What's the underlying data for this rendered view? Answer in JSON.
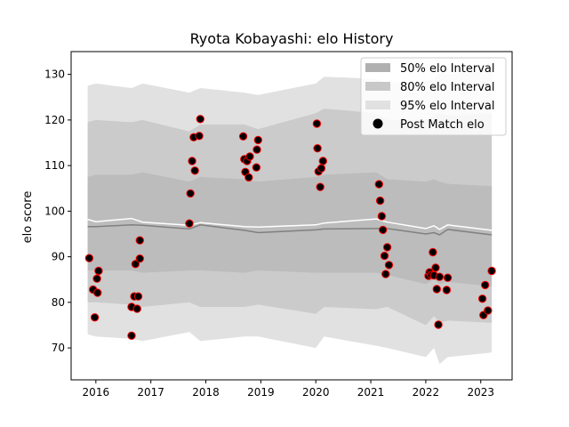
{
  "chart_data": {
    "type": "scatter",
    "title": "Ryota Kobayashi: elo History",
    "xlabel": "",
    "ylabel": "elo score",
    "xlim": [
      2015.55,
      2023.57
    ],
    "ylim": [
      63,
      135
    ],
    "x_ticks": [
      2016,
      2017,
      2018,
      2019,
      2020,
      2021,
      2022,
      2023
    ],
    "y_ticks": [
      70,
      80,
      90,
      100,
      110,
      120,
      130
    ],
    "grid": false,
    "legend_position": "top-right",
    "legend": [
      {
        "label": "50% elo Interval",
        "kind": "band",
        "color": "#b0b0b0"
      },
      {
        "label": "80% elo Interval",
        "kind": "band",
        "color": "#c8c8c8"
      },
      {
        "label": "95% elo Interval",
        "kind": "band",
        "color": "#e1e1e1"
      },
      {
        "label": "Post Match elo",
        "kind": "marker",
        "color": "#000000"
      }
    ],
    "colors": {
      "band_95": "#e1e1e1",
      "band_80": "#cbcbcb",
      "band_50": "#bcbcbc",
      "mean_line": "#808080",
      "median_line": "#ffffff",
      "marker_fill": "#000000",
      "marker_edge": "#ff0000"
    },
    "bands": {
      "x": [
        2015.85,
        2016.0,
        2016.65,
        2016.85,
        2017.7,
        2017.9,
        2018.7,
        2018.95,
        2020.0,
        2020.15,
        2021.1,
        2021.3,
        2022.0,
        2022.15,
        2022.25,
        2022.4,
        2023.2
      ],
      "band_95_upper": [
        127.5,
        128.0,
        127.0,
        128.0,
        126.0,
        127.0,
        126.0,
        125.5,
        128.0,
        129.5,
        129.0,
        128.0,
        128.5,
        129.0,
        130.5,
        130.0,
        131.0
      ],
      "band_95_lower": [
        73.0,
        72.5,
        72.0,
        71.5,
        73.5,
        71.5,
        72.5,
        72.5,
        70.0,
        72.5,
        70.5,
        70.0,
        68.0,
        70.0,
        66.5,
        68.0,
        69.0
      ],
      "band_80_upper": [
        119.5,
        120.0,
        119.5,
        120.0,
        117.5,
        119.0,
        119.0,
        118.0,
        121.5,
        122.5,
        121.5,
        120.0,
        120.0,
        121.0,
        121.5,
        121.0,
        121.5
      ],
      "band_80_lower": [
        80.0,
        80.0,
        79.5,
        79.0,
        80.0,
        79.0,
        79.0,
        79.5,
        77.5,
        79.0,
        78.5,
        79.0,
        75.0,
        77.0,
        75.5,
        76.0,
        75.5
      ],
      "band_50_upper": [
        107.5,
        108.0,
        108.0,
        108.5,
        106.5,
        107.5,
        107.0,
        106.5,
        107.5,
        108.0,
        108.5,
        107.0,
        106.5,
        107.0,
        106.5,
        106.0,
        105.5
      ],
      "band_50_lower": [
        87.0,
        87.0,
        87.0,
        86.5,
        87.0,
        87.0,
        86.5,
        87.0,
        86.5,
        86.5,
        86.5,
        86.0,
        84.0,
        85.0,
        84.0,
        84.5,
        83.5
      ],
      "mean_line": [
        96.6,
        96.6,
        97.0,
        96.9,
        96.1,
        97.0,
        95.8,
        95.3,
        95.9,
        96.1,
        96.2,
        96.2,
        95.0,
        95.3,
        94.8,
        96.0,
        94.8
      ],
      "median_line": [
        98.2,
        97.7,
        98.4,
        97.6,
        96.9,
        97.5,
        96.6,
        96.5,
        97.0,
        97.4,
        98.3,
        97.6,
        96.2,
        96.8,
        96.0,
        97.0,
        95.8
      ]
    },
    "series": [
      {
        "name": "Post Match elo",
        "points": [
          [
            2015.88,
            89.7
          ],
          [
            2015.95,
            82.8
          ],
          [
            2015.98,
            76.7
          ],
          [
            2016.02,
            85.2
          ],
          [
            2016.03,
            82.1
          ],
          [
            2016.05,
            86.9
          ],
          [
            2016.65,
            72.7
          ],
          [
            2016.65,
            79.0
          ],
          [
            2016.7,
            81.3
          ],
          [
            2016.72,
            88.4
          ],
          [
            2016.75,
            78.6
          ],
          [
            2016.77,
            81.3
          ],
          [
            2016.8,
            93.6
          ],
          [
            2016.8,
            89.6
          ],
          [
            2017.7,
            97.3
          ],
          [
            2017.72,
            103.9
          ],
          [
            2017.75,
            111.0
          ],
          [
            2017.78,
            116.2
          ],
          [
            2017.8,
            108.9
          ],
          [
            2017.88,
            116.5
          ],
          [
            2017.9,
            120.2
          ],
          [
            2018.68,
            116.4
          ],
          [
            2018.7,
            111.4
          ],
          [
            2018.72,
            108.6
          ],
          [
            2018.75,
            111.0
          ],
          [
            2018.78,
            107.4
          ],
          [
            2018.8,
            112.0
          ],
          [
            2018.92,
            109.6
          ],
          [
            2018.93,
            113.5
          ],
          [
            2018.95,
            115.6
          ],
          [
            2020.02,
            119.2
          ],
          [
            2020.03,
            113.8
          ],
          [
            2020.05,
            108.7
          ],
          [
            2020.08,
            105.3
          ],
          [
            2020.1,
            109.4
          ],
          [
            2020.13,
            111.0
          ],
          [
            2021.15,
            105.9
          ],
          [
            2021.17,
            102.3
          ],
          [
            2021.2,
            98.9
          ],
          [
            2021.22,
            95.9
          ],
          [
            2021.25,
            90.2
          ],
          [
            2021.27,
            86.2
          ],
          [
            2021.3,
            92.1
          ],
          [
            2021.33,
            88.2
          ],
          [
            2022.05,
            85.8
          ],
          [
            2022.07,
            86.6
          ],
          [
            2022.1,
            86.0
          ],
          [
            2022.13,
            91.0
          ],
          [
            2022.15,
            85.9
          ],
          [
            2022.18,
            87.6
          ],
          [
            2022.2,
            82.9
          ],
          [
            2022.23,
            75.1
          ],
          [
            2022.25,
            85.6
          ],
          [
            2022.38,
            82.7
          ],
          [
            2022.4,
            85.4
          ],
          [
            2023.03,
            80.8
          ],
          [
            2023.05,
            77.2
          ],
          [
            2023.08,
            83.8
          ],
          [
            2023.13,
            78.2
          ],
          [
            2023.2,
            86.9
          ]
        ]
      }
    ]
  }
}
